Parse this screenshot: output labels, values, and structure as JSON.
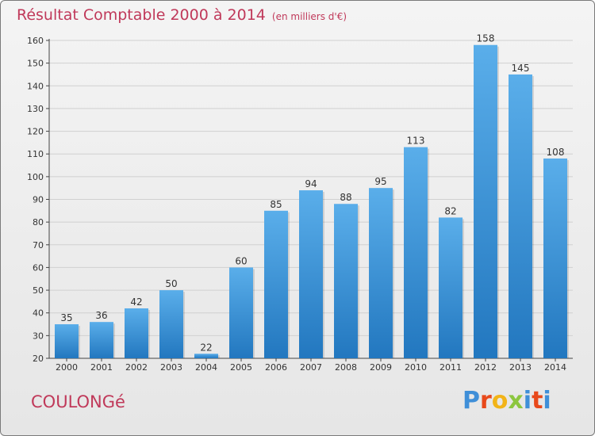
{
  "header": {
    "title": "Résultat Comptable 2000 à 2014",
    "subtitle": "(en milliers d'€)"
  },
  "town": "COULONGé",
  "logo": {
    "text": "Proxiti",
    "colors": [
      "#3f8fd8",
      "#e8491b",
      "#f2b418",
      "#8cc63f",
      "#3f8fd8",
      "#e8491b",
      "#3f8fd8"
    ]
  },
  "colors": {
    "bar_top": "#5aaeea",
    "bar_bottom": "#2277bf",
    "title": "#c0395a",
    "axis": "#444444"
  },
  "chart_data": {
    "type": "bar",
    "categories": [
      "2000",
      "2001",
      "2002",
      "2003",
      "2004",
      "2005",
      "2006",
      "2007",
      "2008",
      "2009",
      "2010",
      "2011",
      "2012",
      "2013",
      "2014"
    ],
    "values": [
      35,
      36,
      42,
      50,
      22,
      60,
      85,
      94,
      88,
      95,
      113,
      82,
      158,
      145,
      108
    ],
    "title": "Résultat Comptable 2000 à 2014",
    "xlabel": "",
    "ylabel": "",
    "ylim": [
      20,
      160
    ],
    "yticks": [
      20,
      30,
      40,
      50,
      60,
      70,
      80,
      90,
      100,
      110,
      120,
      130,
      140,
      150,
      160
    ],
    "grid": true
  }
}
